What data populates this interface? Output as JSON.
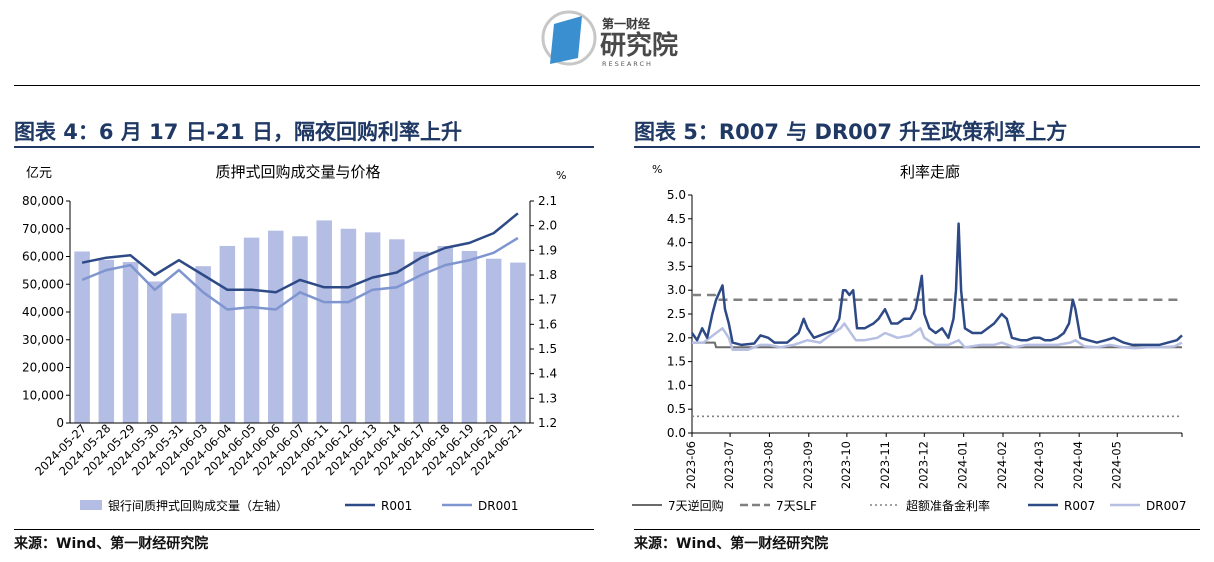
{
  "brand": {
    "line1": "第一财经",
    "line2": "研究院",
    "line3": "RESEARCH",
    "colors": {
      "blue": "#3a8fd0",
      "dark": "#4a4a4a"
    }
  },
  "left": {
    "title": "图表 4：6 月 17 日-21 日，隔夜回购利率上升",
    "source": "来源：Wind、第一财经研究院",
    "chart_data": {
      "type": "bar",
      "title": "质押式回购成交量与价格",
      "y_left_unit": "亿元",
      "y_right_unit": "%",
      "categories": [
        "2024-05-27",
        "2024-05-28",
        "2024-05-29",
        "2024-05-30",
        "2024-05-31",
        "2024-06-03",
        "2024-06-04",
        "2024-06-05",
        "2024-06-06",
        "2024-06-07",
        "2024-06-11",
        "2024-06-12",
        "2024-06-13",
        "2024-06-14",
        "2024-06-17",
        "2024-06-18",
        "2024-06-19",
        "2024-06-20",
        "2024-06-21"
      ],
      "ylim_left": [
        0,
        80000
      ],
      "yticks_left": [
        "0",
        "10,000",
        "20,000",
        "30,000",
        "40,000",
        "50,000",
        "60,000",
        "70,000",
        "80,000"
      ],
      "ylim_right": [
        1.2,
        2.1
      ],
      "yticks_right": [
        "1.2",
        "1.3",
        "1.4",
        "1.5",
        "1.6",
        "1.7",
        "1.8",
        "1.9",
        "2.0",
        "2.1"
      ],
      "series": [
        {
          "name": "银行间质押式回购成交量（左轴）",
          "type": "bar",
          "axis": "left",
          "color": "#b4bde4",
          "values": [
            61800,
            58800,
            58000,
            51000,
            39500,
            56500,
            63800,
            66800,
            69300,
            67300,
            73000,
            70000,
            68700,
            66200,
            61700,
            63800,
            62000,
            59200,
            57800
          ]
        },
        {
          "name": "R001",
          "type": "line",
          "axis": "right",
          "color": "#2e4a86",
          "values": [
            1.85,
            1.87,
            1.88,
            1.8,
            1.86,
            1.8,
            1.74,
            1.74,
            1.73,
            1.78,
            1.75,
            1.75,
            1.79,
            1.81,
            1.87,
            1.91,
            1.93,
            1.97,
            2.05
          ]
        },
        {
          "name": "DR001",
          "type": "line",
          "axis": "right",
          "color": "#7f95d0",
          "values": [
            1.78,
            1.82,
            1.84,
            1.74,
            1.82,
            1.73,
            1.66,
            1.67,
            1.66,
            1.73,
            1.69,
            1.69,
            1.74,
            1.75,
            1.8,
            1.84,
            1.86,
            1.89,
            1.95
          ]
        }
      ],
      "legend_position": "bottom"
    }
  },
  "right": {
    "title": "图表 5：R007 与 DR007 升至政策利率上方",
    "source": "来源：Wind、第一财经研究院",
    "chart_data": {
      "type": "line",
      "title": "利率走廊",
      "y_unit": "%",
      "ylim": [
        0.0,
        5.0
      ],
      "yticks": [
        "0.0",
        "0.5",
        "1.0",
        "1.5",
        "2.0",
        "2.5",
        "3.0",
        "3.5",
        "4.0",
        "4.5",
        "5.0"
      ],
      "xlim": [
        "2023-06-01",
        "2024-06-21"
      ],
      "xticks": [
        "2023-06",
        "2023-07",
        "2023-08",
        "2023-09",
        "2023-10",
        "2023-11",
        "2023-12",
        "2024-01",
        "2024-02",
        "2024-03",
        "2024-04",
        "2024-05"
      ],
      "series": [
        {
          "name": "7天逆回购",
          "style": "solid",
          "color": "#6b6b6b",
          "points": [
            [
              "2023-06-01",
              1.9
            ],
            [
              "2023-06-19",
              1.9
            ],
            [
              "2023-06-20",
              1.8
            ],
            [
              "2024-06-21",
              1.8
            ]
          ]
        },
        {
          "name": "7天SLF",
          "style": "dashed",
          "color": "#808080",
          "points": [
            [
              "2023-06-01",
              2.9
            ],
            [
              "2023-06-19",
              2.9
            ],
            [
              "2023-06-20",
              2.8
            ],
            [
              "2024-06-21",
              2.8
            ]
          ]
        },
        {
          "name": "超额准备金利率",
          "style": "dotted",
          "color": "#808080",
          "points": [
            [
              "2023-06-01",
              0.35
            ],
            [
              "2024-06-21",
              0.35
            ]
          ]
        },
        {
          "name": "R007",
          "style": "solid",
          "color": "#2e4a86",
          "points": [
            [
              "2023-06-01",
              2.1
            ],
            [
              "2023-06-05",
              1.95
            ],
            [
              "2023-06-09",
              2.2
            ],
            [
              "2023-06-13",
              2.0
            ],
            [
              "2023-06-17",
              2.5
            ],
            [
              "2023-06-20",
              2.8
            ],
            [
              "2023-06-25",
              3.1
            ],
            [
              "2023-06-27",
              2.6
            ],
            [
              "2023-06-30",
              2.3
            ],
            [
              "2023-07-03",
              1.9
            ],
            [
              "2023-07-10",
              1.85
            ],
            [
              "2023-07-20",
              1.88
            ],
            [
              "2023-07-25",
              2.05
            ],
            [
              "2023-07-31",
              2.0
            ],
            [
              "2023-08-05",
              1.9
            ],
            [
              "2023-08-15",
              1.9
            ],
            [
              "2023-08-24",
              2.1
            ],
            [
              "2023-08-28",
              2.4
            ],
            [
              "2023-08-31",
              2.2
            ],
            [
              "2023-09-05",
              2.0
            ],
            [
              "2023-09-15",
              2.1
            ],
            [
              "2023-09-20",
              2.15
            ],
            [
              "2023-09-25",
              2.4
            ],
            [
              "2023-09-28",
              3.0
            ],
            [
              "2023-09-30",
              3.0
            ],
            [
              "2023-10-03",
              2.9
            ],
            [
              "2023-10-06",
              3.0
            ],
            [
              "2023-10-09",
              2.2
            ],
            [
              "2023-10-15",
              2.2
            ],
            [
              "2023-10-22",
              2.3
            ],
            [
              "2023-10-26",
              2.4
            ],
            [
              "2023-10-31",
              2.6
            ],
            [
              "2023-11-05",
              2.3
            ],
            [
              "2023-11-10",
              2.3
            ],
            [
              "2023-11-15",
              2.4
            ],
            [
              "2023-11-20",
              2.4
            ],
            [
              "2023-11-24",
              2.6
            ],
            [
              "2023-11-27",
              3.0
            ],
            [
              "2023-11-29",
              3.3
            ],
            [
              "2023-12-01",
              2.5
            ],
            [
              "2023-12-05",
              2.2
            ],
            [
              "2023-12-10",
              2.1
            ],
            [
              "2023-12-15",
              2.2
            ],
            [
              "2023-12-20",
              2.0
            ],
            [
              "2023-12-24",
              2.4
            ],
            [
              "2023-12-26",
              3.0
            ],
            [
              "2023-12-28",
              4.4
            ],
            [
              "2023-12-30",
              3.0
            ],
            [
              "2024-01-02",
              2.2
            ],
            [
              "2024-01-08",
              2.1
            ],
            [
              "2024-01-15",
              2.1
            ],
            [
              "2024-01-20",
              2.2
            ],
            [
              "2024-01-25",
              2.3
            ],
            [
              "2024-01-31",
              2.5
            ],
            [
              "2024-02-04",
              2.4
            ],
            [
              "2024-02-08",
              2.0
            ],
            [
              "2024-02-15",
              1.95
            ],
            [
              "2024-02-20",
              1.95
            ],
            [
              "2024-02-25",
              2.0
            ],
            [
              "2024-03-01",
              2.0
            ],
            [
              "2024-03-05",
              1.95
            ],
            [
              "2024-03-10",
              1.95
            ],
            [
              "2024-03-15",
              2.0
            ],
            [
              "2024-03-20",
              2.1
            ],
            [
              "2024-03-24",
              2.3
            ],
            [
              "2024-03-27",
              2.8
            ],
            [
              "2024-03-29",
              2.6
            ],
            [
              "2024-04-02",
              2.0
            ],
            [
              "2024-04-08",
              1.95
            ],
            [
              "2024-04-15",
              1.9
            ],
            [
              "2024-04-22",
              1.95
            ],
            [
              "2024-04-28",
              2.0
            ],
            [
              "2024-05-06",
              1.9
            ],
            [
              "2024-05-13",
              1.85
            ],
            [
              "2024-05-20",
              1.85
            ],
            [
              "2024-05-27",
              1.85
            ],
            [
              "2024-06-03",
              1.85
            ],
            [
              "2024-06-10",
              1.9
            ],
            [
              "2024-06-17",
              1.95
            ],
            [
              "2024-06-21",
              2.05
            ]
          ]
        },
        {
          "name": "DR007",
          "style": "solid",
          "color": "#b7c0e2",
          "points": [
            [
              "2023-06-01",
              1.9
            ],
            [
              "2023-06-10",
              1.9
            ],
            [
              "2023-06-20",
              2.1
            ],
            [
              "2023-06-25",
              2.2
            ],
            [
              "2023-06-30",
              2.0
            ],
            [
              "2023-07-03",
              1.75
            ],
            [
              "2023-07-15",
              1.75
            ],
            [
              "2023-07-25",
              1.85
            ],
            [
              "2023-07-31",
              1.85
            ],
            [
              "2023-08-10",
              1.8
            ],
            [
              "2023-08-20",
              1.85
            ],
            [
              "2023-08-31",
              1.95
            ],
            [
              "2023-09-10",
              1.9
            ],
            [
              "2023-09-15",
              2.0
            ],
            [
              "2023-09-20",
              2.1
            ],
            [
              "2023-09-26",
              2.2
            ],
            [
              "2023-09-29",
              2.3
            ],
            [
              "2023-10-08",
              1.95
            ],
            [
              "2023-10-15",
              1.95
            ],
            [
              "2023-10-25",
              2.0
            ],
            [
              "2023-10-31",
              2.1
            ],
            [
              "2023-11-10",
              2.0
            ],
            [
              "2023-11-20",
              2.05
            ],
            [
              "2023-11-28",
              2.2
            ],
            [
              "2023-12-01",
              2.0
            ],
            [
              "2023-12-10",
              1.85
            ],
            [
              "2023-12-20",
              1.85
            ],
            [
              "2023-12-28",
              1.95
            ],
            [
              "2024-01-02",
              1.8
            ],
            [
              "2024-01-15",
              1.85
            ],
            [
              "2024-01-25",
              1.85
            ],
            [
              "2024-01-31",
              1.9
            ],
            [
              "2024-02-10",
              1.8
            ],
            [
              "2024-02-20",
              1.85
            ],
            [
              "2024-03-01",
              1.85
            ],
            [
              "2024-03-15",
              1.85
            ],
            [
              "2024-03-25",
              1.9
            ],
            [
              "2024-03-29",
              1.95
            ],
            [
              "2024-04-05",
              1.82
            ],
            [
              "2024-04-15",
              1.8
            ],
            [
              "2024-04-25",
              1.85
            ],
            [
              "2024-05-06",
              1.8
            ],
            [
              "2024-05-15",
              1.78
            ],
            [
              "2024-05-25",
              1.8
            ],
            [
              "2024-06-05",
              1.8
            ],
            [
              "2024-06-15",
              1.82
            ],
            [
              "2024-06-21",
              1.9
            ]
          ]
        }
      ],
      "legend_position": "bottom"
    }
  }
}
